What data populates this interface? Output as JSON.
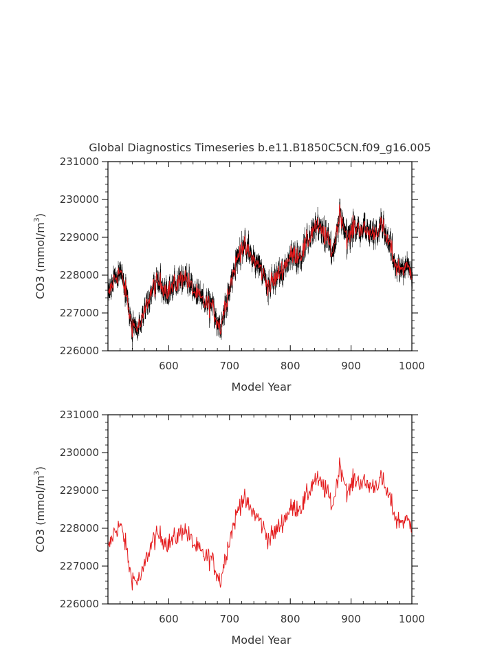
{
  "chart_data": [
    {
      "type": "line",
      "title": "Global Diagnostics Timeseries b.e11.B1850C5CN.f09_g16.005",
      "xlabel": "Model Year",
      "ylabel_main": "CO3 (mmol/m",
      "ylabel_sup": "3",
      "ylabel_close": ")",
      "xlim": [
        500,
        1000
      ],
      "ylim": [
        226000,
        231000
      ],
      "xticks": [
        600,
        700,
        800,
        900,
        1000
      ],
      "yticks": [
        226000,
        227000,
        228000,
        229000,
        230000,
        231000
      ],
      "colors": {
        "monthly": "#000000",
        "annual": "#e41a1c"
      },
      "anchors": {
        "x": [
          500,
          510,
          520,
          530,
          537,
          545,
          555,
          565,
          575,
          585,
          600,
          615,
          625,
          640,
          655,
          670,
          685,
          695,
          705,
          720,
          735,
          750,
          765,
          780,
          800,
          820,
          840,
          855,
          870,
          882,
          895,
          905,
          920,
          935,
          950,
          965,
          975,
          990,
          1000
        ],
        "y": [
          227400,
          227900,
          228100,
          227500,
          226800,
          226600,
          226700,
          227300,
          227700,
          227800,
          227600,
          227800,
          228000,
          227600,
          227300,
          227200,
          226600,
          227400,
          228000,
          228800,
          228500,
          228200,
          227700,
          228000,
          228500,
          228600,
          229300,
          229100,
          228600,
          229700,
          228900,
          229300,
          229200,
          229100,
          229300,
          228700,
          228200,
          228200,
          228100
        ]
      },
      "series": [
        {
          "name": "",
          "resolution": "monthly"
        },
        {
          "name": "",
          "resolution": "annual"
        }
      ]
    },
    {
      "type": "line",
      "title": "",
      "xlabel": "Model Year",
      "ylabel_main": "CO3 (mmol/m",
      "ylabel_sup": "3",
      "ylabel_close": ")",
      "xlim": [
        500,
        1000
      ],
      "ylim": [
        226000,
        231000
      ],
      "xticks": [
        600,
        700,
        800,
        900,
        1000
      ],
      "yticks": [
        226000,
        227000,
        228000,
        229000,
        230000,
        231000
      ],
      "colors": {
        "annual": "#e41a1c"
      },
      "series": [
        {
          "name": "",
          "resolution": "annual"
        }
      ]
    }
  ]
}
